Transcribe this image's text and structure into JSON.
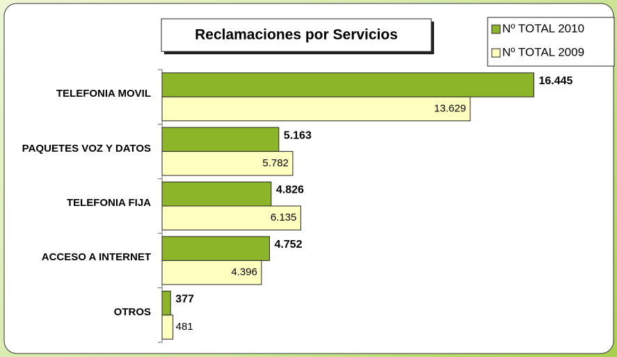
{
  "chart_data": {
    "type": "hbar",
    "title": "Reclamaciones por Servicios",
    "categories": [
      "TELEFONIA MOVIL",
      "PAQUETES VOZ  Y DATOS",
      "TELEFONIA FIJA",
      "ACCESO A INTERNET",
      "OTROS"
    ],
    "series": [
      {
        "name": "Nº TOTAL 2010",
        "color": "#8db52a",
        "values": [
          16445,
          5163,
          4826,
          4752,
          377
        ],
        "value_labels": [
          "16.445",
          "5.163",
          "4.826",
          "4.752",
          "377"
        ]
      },
      {
        "name": "Nº TOTAL 2009",
        "color": "#ffffc0",
        "values": [
          13629,
          5782,
          6135,
          4396,
          481
        ],
        "value_labels": [
          "13.629",
          "5.782",
          "6.135",
          "4.396",
          "481"
        ]
      }
    ],
    "xlim": [
      0,
      20000
    ],
    "grid": false,
    "legend": "top-right"
  }
}
